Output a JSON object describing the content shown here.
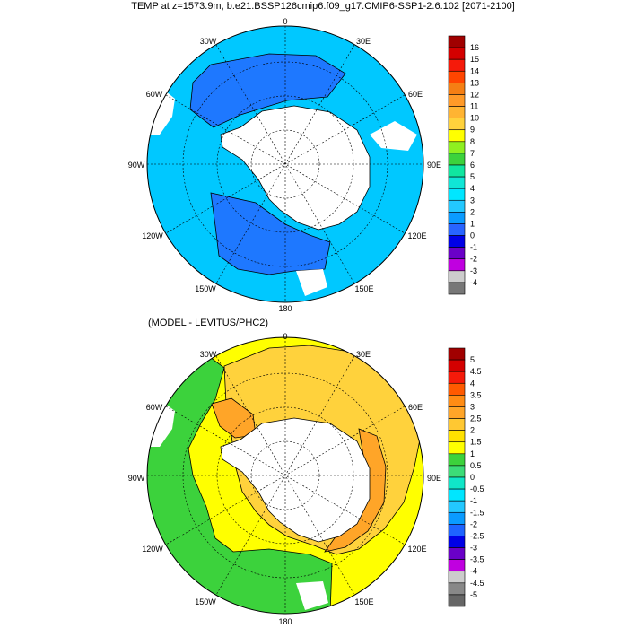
{
  "figure": {
    "title": "TEMP at z=1573.9m, b.e21.BSSP126cmip6.f09_g17.CMIP6-SSP1-2.6.102 [2071-2100]",
    "subtitle": "(MODEL - LEVITUS/PHC2)"
  },
  "map_labels": [
    "0",
    "30E",
    "60E",
    "90E",
    "120E",
    "150E",
    "180",
    "150W",
    "120W",
    "90W",
    "60W",
    "30W"
  ],
  "top_panel": {
    "colorbar": {
      "labels": [
        "16",
        "15",
        "14",
        "13",
        "12",
        "11",
        "10",
        "9",
        "8",
        "7",
        "6",
        "5",
        "4",
        "3",
        "2",
        "1",
        "0",
        "-1",
        "-2",
        "-3",
        "-4"
      ],
      "colors": [
        "#a00000",
        "#d40000",
        "#f51a0a",
        "#ff4500",
        "#f57f14",
        "#ff9a28",
        "#ffb432",
        "#ffd23c",
        "#ffff00",
        "#8ff020",
        "#3cd23c",
        "#10e6a0",
        "#10e6d6",
        "#00e6ff",
        "#23c8ff",
        "#0a9bff",
        "#2864ff",
        "#0000e6",
        "#6a00c8",
        "#c000e0",
        "#cccccc",
        "#777777"
      ]
    },
    "fields": {
      "warm": "#00c8ff",
      "cold": "#1e78ff",
      "land": "#ffffff"
    }
  },
  "bottom_panel": {
    "colorbar": {
      "labels": [
        "5",
        "4.5",
        "4",
        "3.5",
        "3",
        "2.5",
        "2",
        "1.5",
        "1",
        "0.5",
        "0",
        "-0.5",
        "-1",
        "-1.5",
        "-2",
        "-2.5",
        "-3",
        "-3.5",
        "-4",
        "-4.5",
        "-5"
      ],
      "colors": [
        "#a00000",
        "#d40000",
        "#f51a0a",
        "#ff5a00",
        "#ff8c14",
        "#ffa528",
        "#ffc832",
        "#ffe100",
        "#ffff00",
        "#3cd23c",
        "#3cdc78",
        "#10e6c8",
        "#00e6ff",
        "#23c8ff",
        "#0a9bff",
        "#1e64ff",
        "#0000e6",
        "#6a00c8",
        "#c000e0",
        "#cccccc",
        "#888888",
        "#666666"
      ]
    },
    "fields": {
      "green": "#3cd23c",
      "yellow": "#ffff00",
      "gold": "#ffd23c",
      "orange": "#ffa528",
      "land": "#ffffff"
    }
  }
}
